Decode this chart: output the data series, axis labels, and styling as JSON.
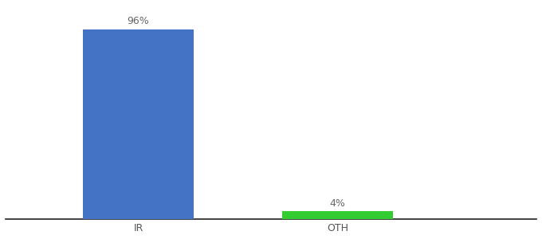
{
  "categories": [
    "IR",
    "OTH"
  ],
  "values": [
    96,
    4
  ],
  "bar_colors": [
    "#4472C4",
    "#33CC33"
  ],
  "label_texts": [
    "96%",
    "4%"
  ],
  "background_color": "#ffffff",
  "bar_width": 0.25,
  "ylim": [
    0,
    108
  ],
  "xlim": [
    -0.1,
    1.1
  ],
  "x_positions": [
    0.2,
    0.65
  ],
  "label_fontsize": 9,
  "tick_fontsize": 9
}
